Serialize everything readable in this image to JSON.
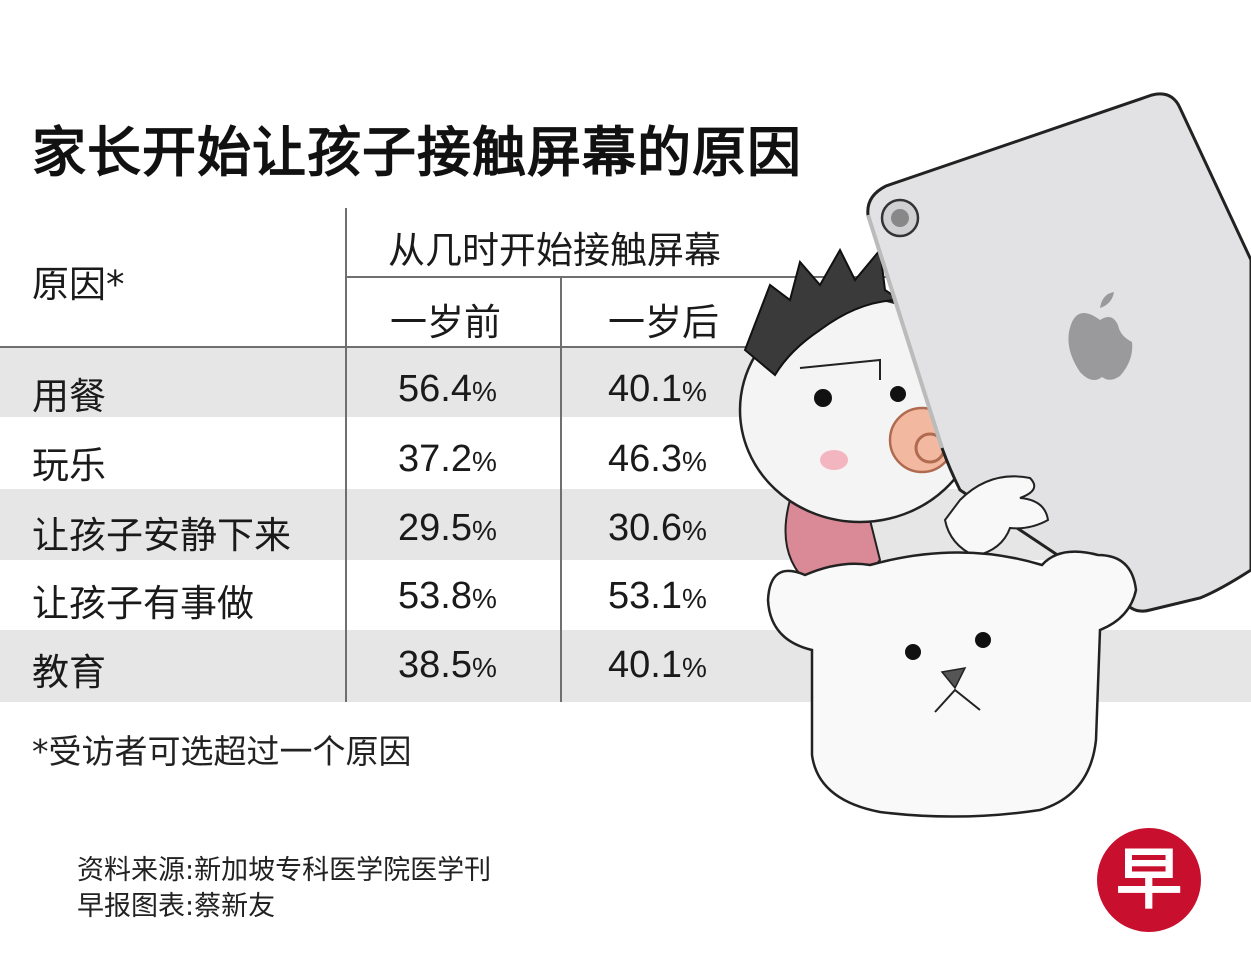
{
  "title": "家长开始让孩子接触屏幕的原因",
  "table": {
    "reason_header": "原因*",
    "group_header": "从几时开始接触屏幕",
    "col_before": "一岁前",
    "col_after": "一岁后",
    "rows": [
      {
        "reason": "用餐",
        "before": "56.4",
        "after": "40.1"
      },
      {
        "reason": "玩乐",
        "before": "37.2",
        "after": "46.3"
      },
      {
        "reason": "让孩子安静下来",
        "before": "29.5",
        "after": "30.6"
      },
      {
        "reason": "让孩子有事做",
        "before": "53.8",
        "after": "53.1"
      },
      {
        "reason": "教育",
        "before": "38.5",
        "after": "40.1"
      }
    ],
    "unit": "%"
  },
  "footnote": "*受访者可选超过一个原因",
  "source_line1": "资料来源:新加坡专科医学院医学刊",
  "source_line2": "早报图表:蔡新友",
  "logo_text": "早",
  "colors": {
    "band": "#e6e6e7",
    "logo": "#c8102e",
    "rule": "#6f6f6f"
  },
  "chart_data": {
    "type": "table",
    "title": "家长开始让孩子接触屏幕的原因",
    "columns": [
      "原因*",
      "一岁前",
      "一岁后"
    ],
    "column_group": "从几时开始接触屏幕",
    "categories": [
      "用餐",
      "玩乐",
      "让孩子安静下来",
      "让孩子有事做",
      "教育"
    ],
    "series": [
      {
        "name": "一岁前",
        "values": [
          56.4,
          37.2,
          29.5,
          53.8,
          38.5
        ]
      },
      {
        "name": "一岁后",
        "values": [
          40.1,
          46.3,
          30.6,
          53.1,
          40.1
        ]
      }
    ],
    "unit": "%"
  }
}
